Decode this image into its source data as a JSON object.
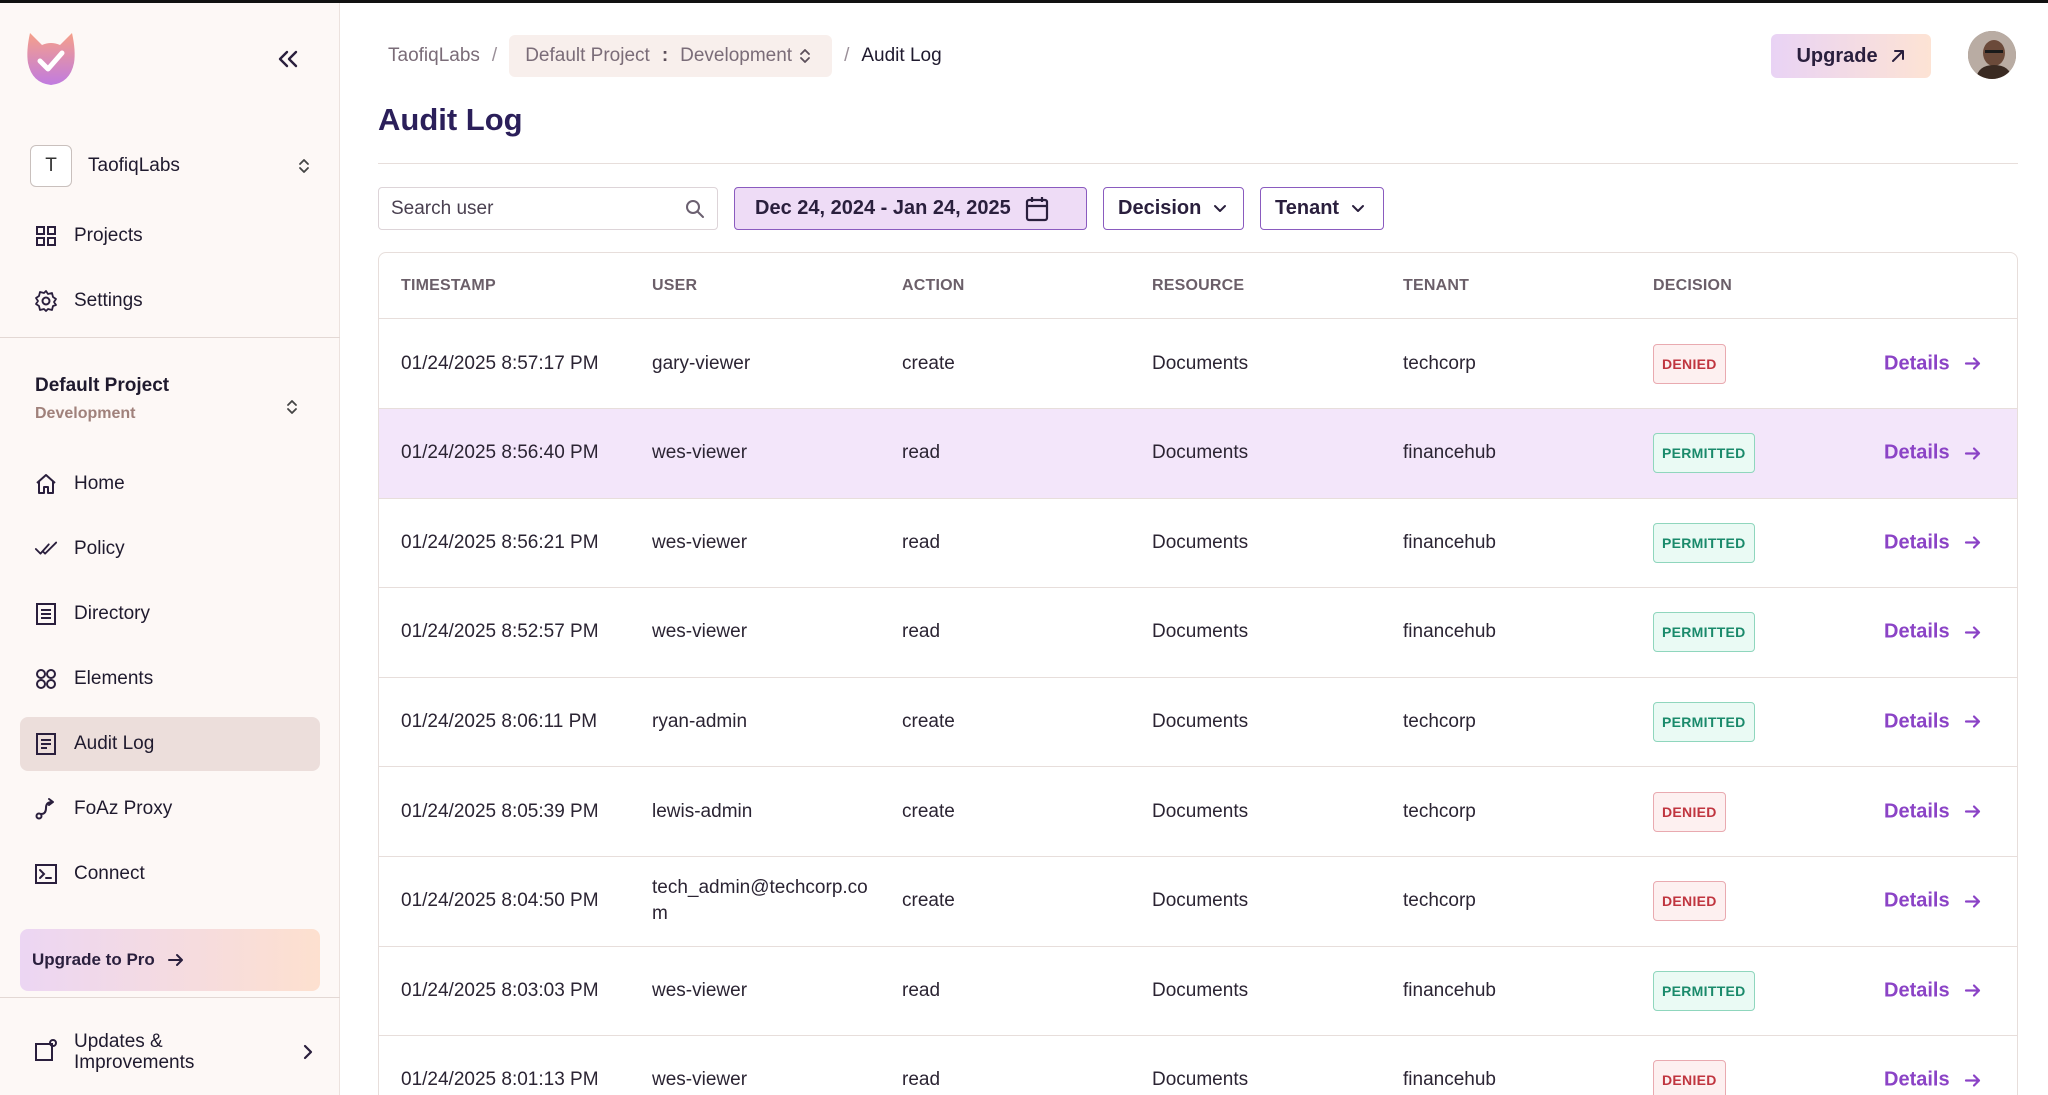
{
  "sidebar": {
    "org": {
      "initial": "T",
      "name": "TaofiqLabs"
    },
    "top_nav": [
      {
        "label": "Projects",
        "icon": "grid-icon"
      },
      {
        "label": "Settings",
        "icon": "gear-icon"
      }
    ],
    "project": {
      "name": "Default Project",
      "env": "Development"
    },
    "nav": [
      {
        "label": "Home",
        "icon": "home-icon"
      },
      {
        "label": "Policy",
        "icon": "policy-check-icon"
      },
      {
        "label": "Directory",
        "icon": "directory-icon"
      },
      {
        "label": "Elements",
        "icon": "elements-icon"
      },
      {
        "label": "Audit Log",
        "icon": "audit-log-icon",
        "active": true
      },
      {
        "label": "FoAz Proxy",
        "icon": "proxy-icon"
      },
      {
        "label": "Connect",
        "icon": "terminal-icon"
      }
    ],
    "upgrade_pro": "Upgrade to Pro",
    "updates_line1": "Updates &",
    "updates_line2": "Improvements"
  },
  "header": {
    "breadcrumb_org": "TaofiqLabs",
    "breadcrumb_project": "Default Project",
    "breadcrumb_colon": ":",
    "breadcrumb_env": "Development",
    "breadcrumb_sep": "/",
    "breadcrumb_current": "Audit Log",
    "upgrade_label": "Upgrade"
  },
  "main": {
    "title": "Audit Log",
    "search_placeholder": "Search user",
    "date_range": "Dec 24, 2024 - Jan 24, 2025",
    "decision_filter": "Decision",
    "tenant_filter": "Tenant"
  },
  "table": {
    "columns": [
      "TIMESTAMP",
      "USER",
      "ACTION",
      "RESOURCE",
      "TENANT",
      "DECISION"
    ],
    "details_label": "Details",
    "rows": [
      {
        "timestamp": "01/24/2025 8:57:17 PM",
        "user": "gary-viewer",
        "action": "create",
        "resource": "Documents",
        "tenant": "techcorp",
        "decision": "DENIED"
      },
      {
        "timestamp": "01/24/2025 8:56:40 PM",
        "user": "wes-viewer",
        "action": "read",
        "resource": "Documents",
        "tenant": "financehub",
        "decision": "PERMITTED",
        "highlight": true
      },
      {
        "timestamp": "01/24/2025 8:56:21 PM",
        "user": "wes-viewer",
        "action": "read",
        "resource": "Documents",
        "tenant": "financehub",
        "decision": "PERMITTED"
      },
      {
        "timestamp": "01/24/2025 8:52:57 PM",
        "user": "wes-viewer",
        "action": "read",
        "resource": "Documents",
        "tenant": "financehub",
        "decision": "PERMITTED"
      },
      {
        "timestamp": "01/24/2025 8:06:11 PM",
        "user": "ryan-admin",
        "action": "create",
        "resource": "Documents",
        "tenant": "techcorp",
        "decision": "PERMITTED"
      },
      {
        "timestamp": "01/24/2025 8:05:39 PM",
        "user": "lewis-admin",
        "action": "create",
        "resource": "Documents",
        "tenant": "techcorp",
        "decision": "DENIED"
      },
      {
        "timestamp": "01/24/2025 8:04:50 PM",
        "user": "tech_admin@techcorp.com",
        "action": "create",
        "resource": "Documents",
        "tenant": "techcorp",
        "decision": "DENIED"
      },
      {
        "timestamp": "01/24/2025 8:03:03 PM",
        "user": "wes-viewer",
        "action": "read",
        "resource": "Documents",
        "tenant": "financehub",
        "decision": "PERMITTED"
      },
      {
        "timestamp": "01/24/2025 8:01:13 PM",
        "user": "wes-viewer",
        "action": "read",
        "resource": "Documents",
        "tenant": "financehub",
        "decision": "DENIED"
      }
    ]
  },
  "colors": {
    "accent": "#8b43c6",
    "title": "#2b1f5a",
    "denied": "#c0353f",
    "permitted": "#1a8a6b",
    "highlight_row": "#f3e6fa"
  }
}
